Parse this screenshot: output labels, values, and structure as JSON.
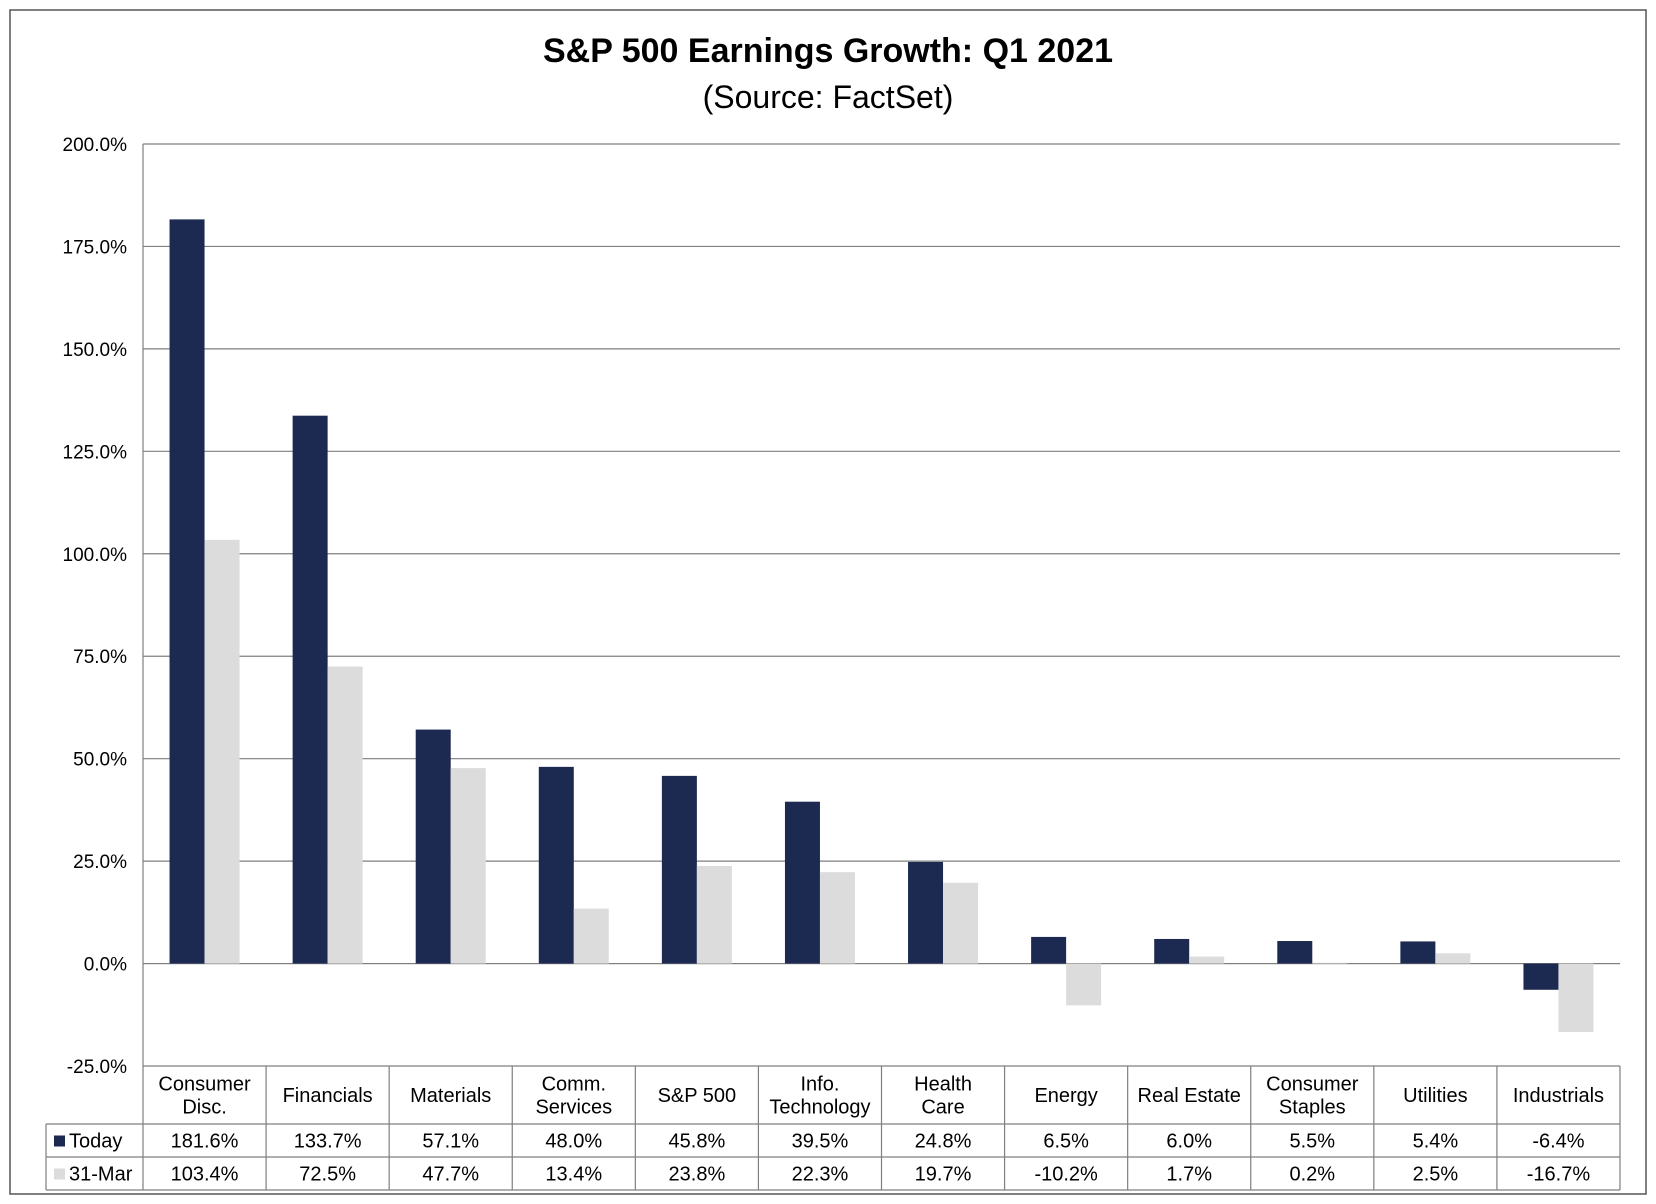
{
  "chart_data": {
    "type": "bar",
    "title": "S&P 500 Earnings Growth: Q1 2021",
    "subtitle": "(Source: FactSet)",
    "categories": [
      [
        "Consumer",
        "Disc."
      ],
      [
        "Financials"
      ],
      [
        "Materials"
      ],
      [
        "Comm.",
        "Services"
      ],
      [
        "S&P 500"
      ],
      [
        "Info.",
        "Technology"
      ],
      [
        "Health",
        "Care"
      ],
      [
        "Energy"
      ],
      [
        "Real Estate"
      ],
      [
        "Consumer",
        "Staples"
      ],
      [
        "Utilities"
      ],
      [
        "Industrials"
      ]
    ],
    "series": [
      {
        "name": "Today",
        "color": "#1c2951",
        "values": [
          181.6,
          133.7,
          57.1,
          48.0,
          45.8,
          39.5,
          24.8,
          6.5,
          6.0,
          5.5,
          5.4,
          -6.4
        ],
        "labels": [
          "181.6%",
          "133.7%",
          "57.1%",
          "48.0%",
          "45.8%",
          "39.5%",
          "24.8%",
          "6.5%",
          "6.0%",
          "5.5%",
          "5.4%",
          "-6.4%"
        ]
      },
      {
        "name": "31-Mar",
        "color": "#dcdcdc",
        "values": [
          103.4,
          72.5,
          47.7,
          13.4,
          23.8,
          22.3,
          19.7,
          -10.2,
          1.7,
          0.2,
          2.5,
          -16.7
        ],
        "labels": [
          "103.4%",
          "72.5%",
          "47.7%",
          "13.4%",
          "23.8%",
          "22.3%",
          "19.7%",
          "-10.2%",
          "1.7%",
          "0.2%",
          "2.5%",
          "-16.7%"
        ]
      }
    ],
    "ylim": [
      -25,
      200
    ],
    "yticks": [
      200,
      175,
      150,
      125,
      100,
      75,
      50,
      25,
      0,
      -25
    ],
    "ytick_labels": [
      "200.0%",
      "175.0%",
      "150.0%",
      "125.0%",
      "100.0%",
      "75.0%",
      "50.0%",
      "25.0%",
      "0.0%",
      "-25.0%"
    ],
    "grid": true,
    "legend": "data-table-below"
  }
}
